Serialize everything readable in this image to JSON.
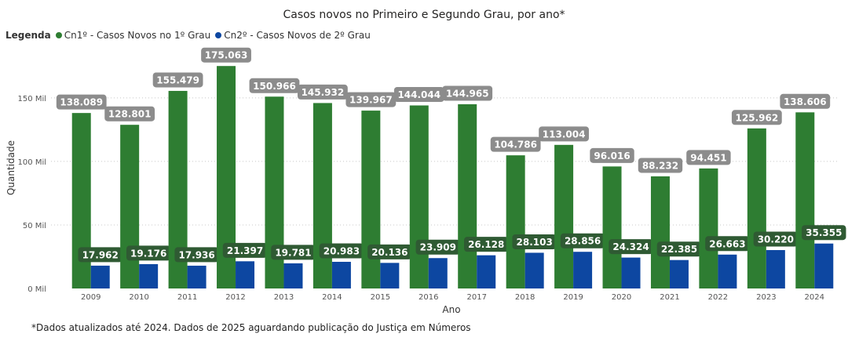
{
  "chart_data": {
    "type": "bar",
    "title": "Casos novos no Primeiro e Segundo Grau, por ano*",
    "legend_title": "Legenda",
    "xlabel": "Ano",
    "ylabel": "Quantidade",
    "ylim": [
      0,
      190000
    ],
    "y_ticks": [
      {
        "value": 0,
        "label": "0 Mil"
      },
      {
        "value": 50000,
        "label": "50 Mil"
      },
      {
        "value": 100000,
        "label": "100 Mil"
      },
      {
        "value": 150000,
        "label": "150 Mil"
      }
    ],
    "grid": true,
    "legend_position": "top-left",
    "categories": [
      "2009",
      "2010",
      "2011",
      "2012",
      "2013",
      "2014",
      "2015",
      "2016",
      "2017",
      "2018",
      "2019",
      "2020",
      "2021",
      "2022",
      "2023",
      "2024"
    ],
    "series": [
      {
        "name": "Cn1º - Casos Novos no 1º Grau",
        "color": "#2e7d32",
        "label_bg": "#8c8c8c",
        "values": [
          138089,
          128801,
          155479,
          175063,
          150966,
          145932,
          139967,
          144044,
          144965,
          104786,
          113004,
          96016,
          88232,
          94451,
          125962,
          138606
        ],
        "labels": [
          "138.089",
          "128.801",
          "155.479",
          "175.063",
          "150.966",
          "145.932",
          "139.967",
          "144.044",
          "144.965",
          "104.786",
          "113.004",
          "96.016",
          "88.232",
          "94.451",
          "125.962",
          "138.606"
        ]
      },
      {
        "name": "Cn2º - Casos Novos de 2º Grau",
        "color": "#0d47a1",
        "label_bg": "#2f5a33",
        "values": [
          17962,
          19176,
          17936,
          21397,
          19781,
          20983,
          20136,
          23909,
          26128,
          28103,
          28856,
          24324,
          22385,
          26663,
          30220,
          35355
        ],
        "labels": [
          "17.962",
          "19.176",
          "17.936",
          "21.397",
          "19.781",
          "20.983",
          "20.136",
          "23.909",
          "26.128",
          "28.103",
          "28.856",
          "24.324",
          "22.385",
          "26.663",
          "30.220",
          "35.355"
        ]
      }
    ]
  },
  "footnote": "*Dados atualizados até 2024. Dados de 2025 aguardando publicação do Justiça em Números"
}
